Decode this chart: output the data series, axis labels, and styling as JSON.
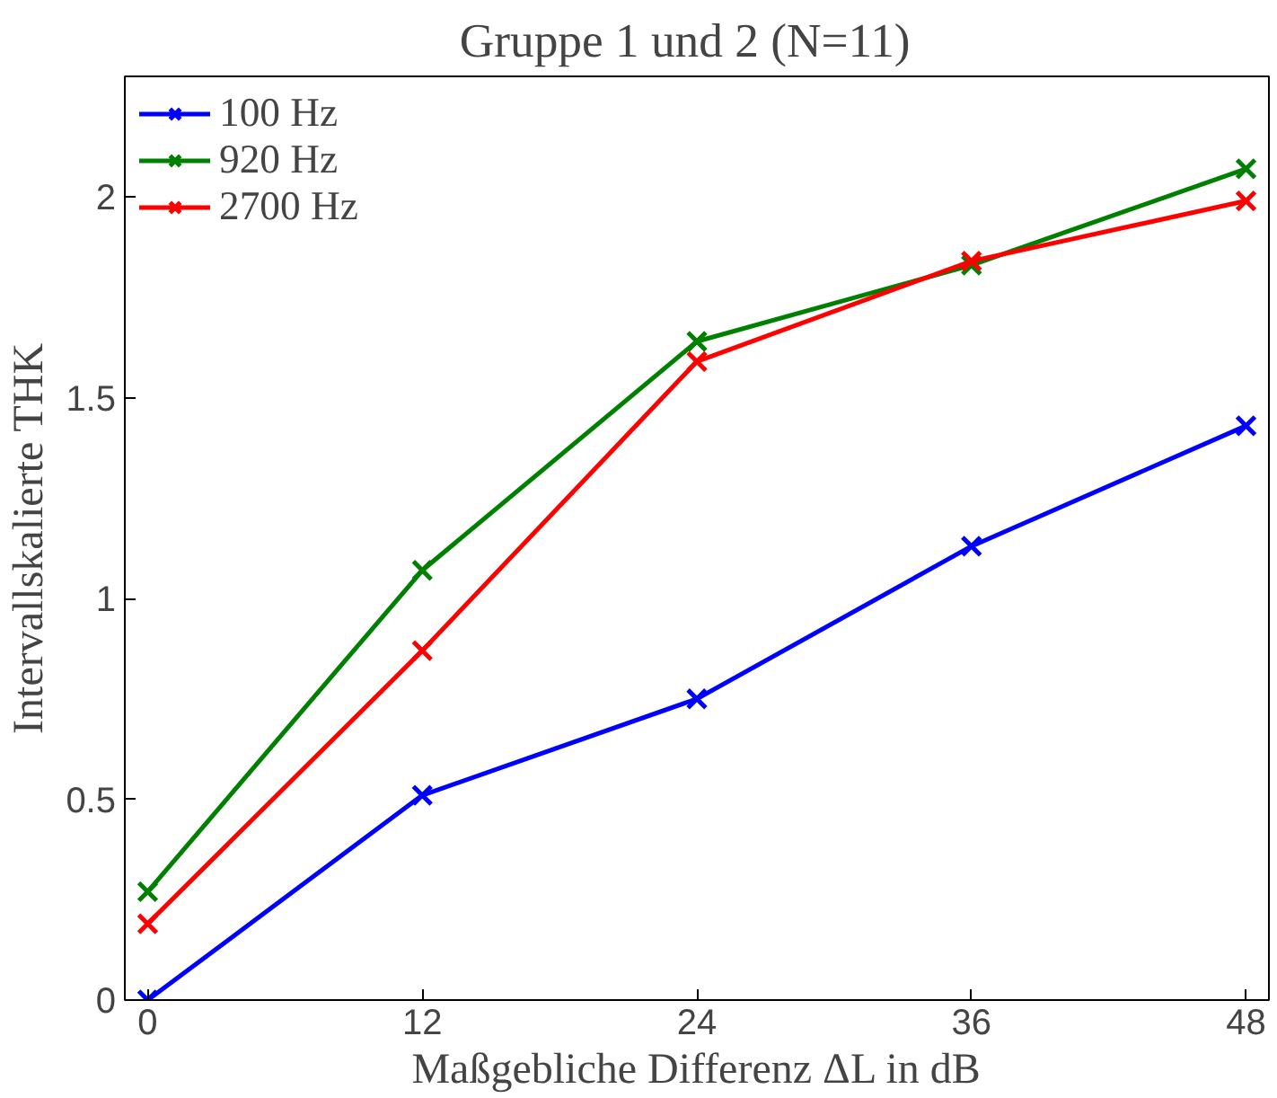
{
  "chart_data": {
    "type": "line",
    "title": "Gruppe 1 und 2   (N=11)",
    "xlabel": "Maßgebliche Differenz ΔL in dB",
    "ylabel": "Intervallskalierte THK",
    "x": [
      0,
      12,
      24,
      36,
      48
    ],
    "series": [
      {
        "name": "100 Hz",
        "color": "#0000ff",
        "values": [
          0,
          0.51,
          0.75,
          1.13,
          1.43
        ]
      },
      {
        "name": "920 Hz",
        "color": "#008000",
        "values": [
          0.27,
          1.07,
          1.64,
          1.83,
          2.07
        ]
      },
      {
        "name": "2700 Hz",
        "color": "#ff0000",
        "values": [
          0.19,
          0.87,
          1.59,
          1.84,
          1.99
        ]
      }
    ],
    "xlim": [
      -1,
      49
    ],
    "ylim": [
      0,
      2.3
    ],
    "xticks": [
      0,
      12,
      24,
      36,
      48
    ],
    "yticks": [
      0,
      0.5,
      1,
      1.5,
      2
    ],
    "grid": false,
    "legend": "top left",
    "marker": "cross",
    "line_style": "solid"
  }
}
